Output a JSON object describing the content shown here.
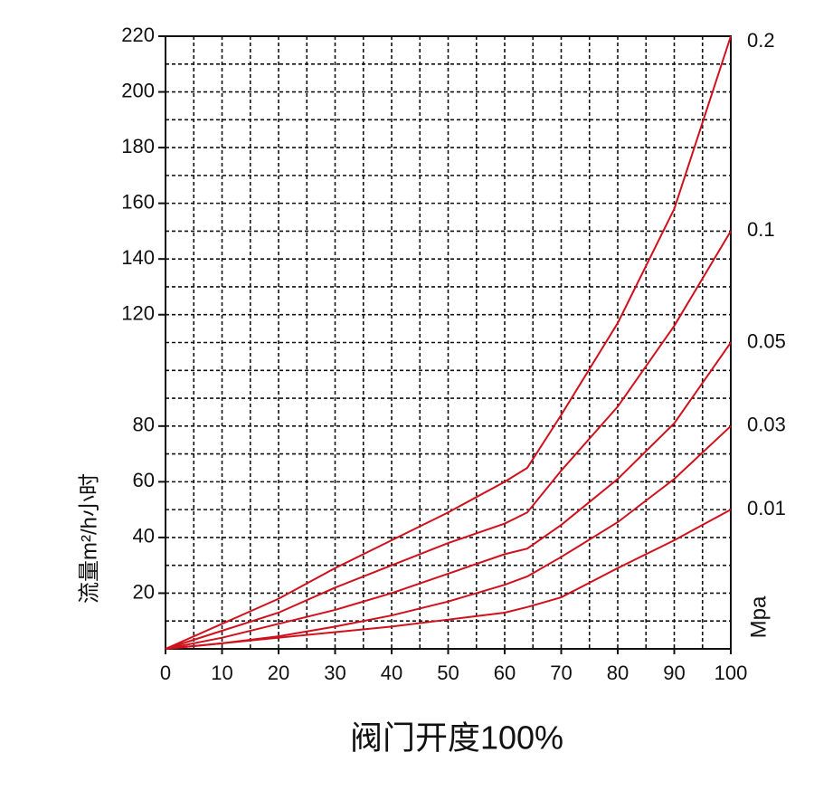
{
  "chart_data": {
    "type": "line",
    "x_label": "阀门开度100%",
    "y_label": "流量m²/h小时",
    "unit_label": "Mpa",
    "x": [
      0,
      10,
      20,
      30,
      40,
      50,
      60,
      64,
      70,
      80,
      90,
      100
    ],
    "series": [
      {
        "name": "0.2",
        "color": "#d0101c",
        "values": [
          0,
          9,
          18,
          29,
          39,
          49,
          60,
          65,
          84,
          117,
          158,
          220
        ]
      },
      {
        "name": "0.1",
        "color": "#d0101c",
        "values": [
          0,
          6.5,
          13,
          22,
          30,
          38,
          45,
          49,
          64,
          87,
          116,
          150
        ]
      },
      {
        "name": "0.05",
        "color": "#d0101c",
        "values": [
          0,
          4,
          9,
          14,
          20,
          27,
          34,
          36,
          44.5,
          61,
          81,
          110
        ]
      },
      {
        "name": "0.03",
        "color": "#d0101c",
        "values": [
          0,
          2,
          4.5,
          8,
          12,
          17,
          23,
          26,
          33,
          45.5,
          61,
          80
        ]
      },
      {
        "name": "0.01",
        "color": "#d0101c",
        "values": [
          0,
          2,
          4,
          6,
          8,
          10.5,
          13,
          15,
          18.5,
          29,
          39,
          50
        ]
      }
    ],
    "xlim": [
      0,
      100
    ],
    "ylim": [
      0,
      220
    ],
    "xticks": [
      0,
      10,
      20,
      30,
      40,
      50,
      60,
      70,
      80,
      90,
      100
    ],
    "yticks": [
      20,
      40,
      60,
      80,
      120,
      140,
      160,
      180,
      200,
      220
    ],
    "grid": true
  }
}
